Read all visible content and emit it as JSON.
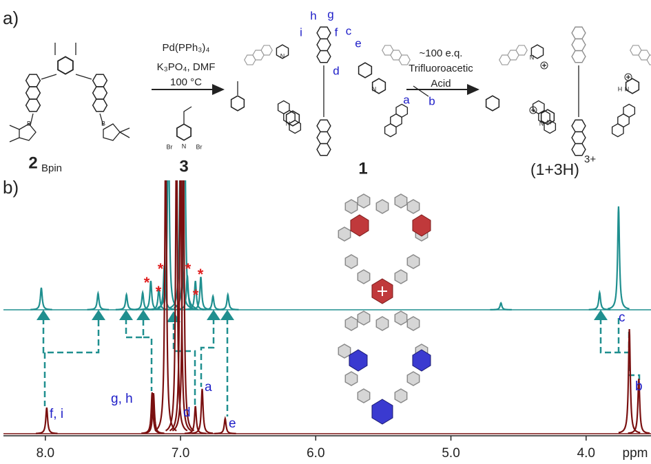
{
  "panel_a": {
    "label": "a)",
    "step_1": {
      "reagents": [
        "Pd(PPh₃)₄",
        "K₃PO₄, DMF",
        "100 °C"
      ]
    },
    "step_2": {
      "reagents": [
        "~100 e.q.",
        "Trifluoroacetic",
        "Acid"
      ]
    },
    "compound_2": {
      "number": "2",
      "subscript": "Bpin",
      "atoms": [
        "B",
        "B"
      ]
    },
    "compound_3": {
      "number": "3",
      "atoms": [
        "Br",
        "N",
        "Br"
      ]
    },
    "compound_1": {
      "number": "1",
      "atoms": [
        "N",
        "N",
        "N"
      ],
      "proton_labels": [
        "h",
        "g",
        "i",
        "f",
        "c",
        "e",
        "d",
        "a",
        "b"
      ]
    },
    "product": {
      "text": "(1+3H)",
      "superscript": "3+",
      "atoms": [
        "N",
        "H",
        "N",
        "H",
        "N"
      ]
    }
  },
  "panel_b": {
    "label": "b)",
    "x_axis": {
      "unit": "ppm",
      "xlim": [
        8.31,
        3.52
      ],
      "xticks": [
        {
          "value": 8,
          "label": "8.0"
        },
        {
          "value": 7,
          "label": "7.0"
        },
        {
          "value": 6,
          "label": "6.0"
        },
        {
          "value": 5,
          "label": "5.0"
        },
        {
          "value": 4,
          "label": "4.0"
        }
      ]
    },
    "spectra": [
      {
        "color": "#1f8f8f",
        "peaks": [
          {
            "ppm": 8.03,
            "intensity": 8.7
          },
          {
            "ppm": 7.61,
            "intensity": 6.5
          },
          {
            "ppm": 7.4,
            "intensity": 6
          },
          {
            "ppm": 7.28,
            "intensity": 6.8
          },
          {
            "ppm": 7.22,
            "intensity": 11.4
          },
          {
            "ppm": 7.16,
            "intensity": 8.7
          },
          {
            "ppm": 7.12,
            "intensity": 17.4
          },
          {
            "ppm": 7.09,
            "intensity": 80
          },
          {
            "ppm": 7.0,
            "intensity": 80
          },
          {
            "ppm": 6.97,
            "intensity": 80
          },
          {
            "ppm": 6.95,
            "intensity": 13.6
          },
          {
            "ppm": 6.89,
            "intensity": 11.4
          },
          {
            "ppm": 6.85,
            "intensity": 13
          },
          {
            "ppm": 6.76,
            "intensity": 5.4
          },
          {
            "ppm": 6.65,
            "intensity": 6
          },
          {
            "ppm": 4.63,
            "intensity": 2.7
          },
          {
            "ppm": 3.9,
            "intensity": 6.8
          },
          {
            "ppm": 3.76,
            "intensity": 40.8
          }
        ]
      },
      {
        "color": "#7a1010",
        "peaks": [
          {
            "ppm": 7.99,
            "intensity": 10.3
          },
          {
            "ppm": 7.21,
            "intensity": 16.3
          },
          {
            "ppm": 7.2,
            "intensity": 16
          },
          {
            "ppm": 7.11,
            "intensity": 120
          },
          {
            "ppm": 7.03,
            "intensity": 120
          },
          {
            "ppm": 7.0,
            "intensity": 120
          },
          {
            "ppm": 6.98,
            "intensity": 120
          },
          {
            "ppm": 6.89,
            "intensity": 10.9
          },
          {
            "ppm": 6.84,
            "intensity": 17.7
          },
          {
            "ppm": 6.67,
            "intensity": 6
          },
          {
            "ppm": 3.68,
            "intensity": 41.3
          },
          {
            "ppm": 3.61,
            "intensity": 21.7
          }
        ]
      }
    ],
    "peak_labels": [
      "f, i",
      "g, h",
      "d",
      "a",
      "e",
      "c",
      "b"
    ],
    "impurity_marks": [
      "*",
      "*",
      "*",
      "*",
      "*",
      "*"
    ]
  }
}
